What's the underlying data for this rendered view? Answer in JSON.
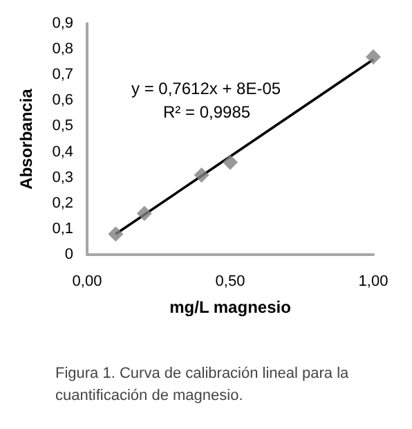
{
  "chart_data": {
    "type": "scatter",
    "xlabel": "mg/L magnesio",
    "ylabel": "Absorbancia",
    "series": [
      {
        "type": "scatter",
        "color": "#7f7f7f",
        "marker": "diamond",
        "x": [
          0.1,
          0.2,
          0.4,
          0.5,
          1.0
        ],
        "values": [
          0.08,
          0.16,
          0.31,
          0.36,
          0.77
        ]
      },
      {
        "type": "line",
        "color": "#000000",
        "marker": "none",
        "line_style": "solid",
        "x": [
          0.1,
          1.0
        ],
        "values": [
          0.08,
          0.76
        ]
      }
    ],
    "xlim": [
      0,
      1
    ],
    "xticks": [
      {
        "value": 0,
        "label": "0,00"
      },
      {
        "value": 0.5,
        "label": "0,50"
      },
      {
        "value": 1,
        "label": "1,00"
      }
    ],
    "ylim": [
      0,
      0.9
    ],
    "yticks": [
      0,
      {
        "value": 0.1,
        "label": "0,1"
      },
      {
        "value": 0.2,
        "label": "0,2"
      },
      {
        "value": 0.3,
        "label": "0,3"
      },
      {
        "value": 0.4,
        "label": "0,4"
      },
      {
        "value": 0.5,
        "label": "0,5"
      },
      {
        "value": 0.6,
        "label": "0,6"
      },
      {
        "value": 0.7,
        "label": "0,7"
      },
      {
        "value": 0.8,
        "label": "0,8"
      },
      {
        "value": 0.9,
        "label": "0,9"
      }
    ],
    "grid": false,
    "annotations": [
      "y = 0,7612x + 8E-05",
      "R² = 0,9985",
      "Figura 1. Curva de calibración lineal para la cuantificación de magnesio."
    ]
  }
}
